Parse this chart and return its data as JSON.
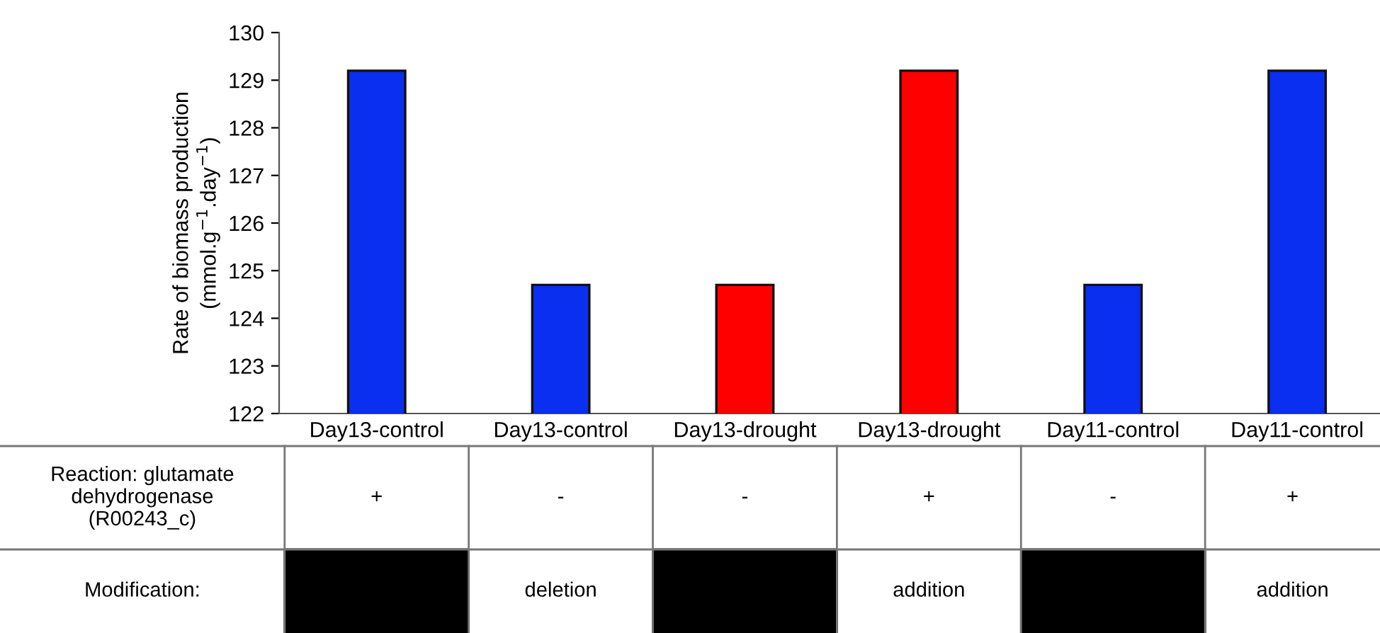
{
  "chart_data": {
    "type": "bar",
    "ylabel": "Rate of biomass production\n(mmol.g$^{−1}$.day$^{−1}$)",
    "categories": [
      "Day13-control",
      "Day13-control",
      "Day13-drought",
      "Day13-drought",
      "Day11-control",
      "Day11-control"
    ],
    "values": [
      129.2,
      124.7,
      124.7,
      129.2,
      124.7,
      129.2
    ],
    "colors": [
      "#0a2ff0",
      "#0a2ff0",
      "#ff0000",
      "#ff0000",
      "#0a2ff0",
      "#0a2ff0"
    ],
    "ylim": [
      122,
      130
    ],
    "yticks": [
      122,
      123,
      124,
      125,
      126,
      127,
      128,
      129,
      130
    ],
    "grid": false,
    "legend": false,
    "annotations": [
      "Reaction: glutamate\ndehydrogenase\n(R00243_c)",
      "+",
      "-",
      "-",
      "+",
      "-",
      "+",
      "Modification:",
      "deletion",
      "addition",
      "addition"
    ]
  }
}
